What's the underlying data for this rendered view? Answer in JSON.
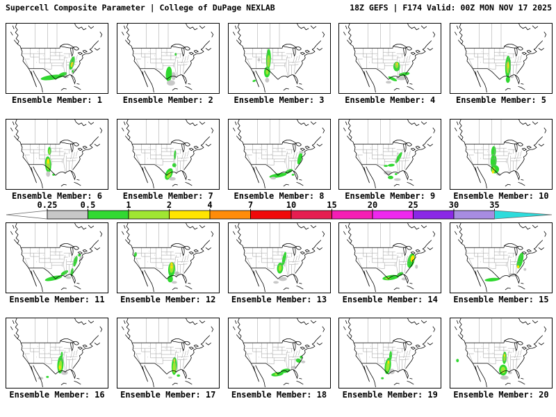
{
  "header": {
    "left": "Supercell Composite Parameter | College of DuPage NEXLAB",
    "right": "18Z GEFS | F174 Valid: 00Z MON NOV 17 2025"
  },
  "colorbar": {
    "ticks": [
      "0.25",
      "0.5",
      "1",
      "2",
      "4",
      "7",
      "10",
      "15",
      "20",
      "25",
      "30",
      "35"
    ],
    "segment_colors": [
      "#c8c8c8",
      "#32d932",
      "#a0e632",
      "#ffe400",
      "#ff8c0a",
      "#f00a0a",
      "#e61e50",
      "#f51eb4",
      "#ee28ee",
      "#8a28e6",
      "#a78ce1"
    ],
    "left_arrow_color": "#ffffff",
    "right_arrow_color": "#2edcdc"
  },
  "palette": {
    "G": "#2fd82f",
    "L": "#a0e632",
    "Y": "#ffe400",
    "GR": "#c8c8c8"
  },
  "chart_data": {
    "type": "map_contour_ensemble",
    "title": "Supercell Composite Parameter | College of DuPage NEXLAB",
    "model_run": "18Z GEFS",
    "forecast_hour": "F174",
    "valid": "00Z MON NOV 17 2025",
    "scale_values": [
      0.25,
      0.5,
      1,
      2,
      4,
      7,
      10,
      15,
      20,
      25,
      30,
      35
    ],
    "legend_position": "middle, between rows 2 and 3",
    "grid": "4 rows x 5 columns of CONUS maps",
    "members": [
      "Ensemble Member: 1",
      "Ensemble Member: 2",
      "Ensemble Member: 3",
      "Ensemble Member: 4",
      "Ensemble Member: 5",
      "Ensemble Member: 6",
      "Ensemble Member: 7",
      "Ensemble Member: 8",
      "Ensemble Member: 9",
      "Ensemble Member: 10",
      "Ensemble Member: 11",
      "Ensemble Member: 12",
      "Ensemble Member: 13",
      "Ensemble Member: 14",
      "Ensemble Member: 15",
      "Ensemble Member: 16",
      "Ensemble Member: 17",
      "Ensemble Member: 18",
      "Ensemble Member: 19",
      "Ensemble Member: 20"
    ]
  },
  "panels": [
    {
      "label": "Ensemble Member: 1",
      "blobs": [
        [
          66,
          79,
          16,
          3.5,
          -8,
          "G"
        ],
        [
          82,
          75,
          7,
          3,
          -22,
          "G"
        ],
        [
          96,
          58,
          3.5,
          10,
          15,
          "G"
        ],
        [
          96,
          60,
          1.7,
          4,
          15,
          "Y"
        ],
        [
          87,
          78,
          4,
          2,
          0,
          "GR"
        ],
        [
          100,
          68,
          3,
          2,
          0,
          "GR"
        ],
        [
          97,
          70,
          1.5,
          2,
          0,
          "G"
        ]
      ]
    },
    {
      "label": "Ensemble Member: 2",
      "blobs": [
        [
          75,
          74,
          4.5,
          11,
          3,
          "G"
        ],
        [
          78,
          87,
          6,
          4,
          0,
          "GR"
        ],
        [
          82,
          77,
          3,
          6,
          0,
          "GR"
        ],
        [
          85,
          45,
          1.5,
          2,
          0,
          "G"
        ]
      ]
    },
    {
      "label": "Ensemble Member: 3",
      "blobs": [
        [
          58,
          52,
          3.5,
          15,
          2,
          "G"
        ],
        [
          58,
          55,
          2,
          9,
          2,
          "L"
        ],
        [
          56,
          71,
          4.5,
          8,
          3,
          "G"
        ],
        [
          56,
          71,
          2,
          4,
          0,
          "L"
        ],
        [
          56,
          83,
          3,
          3.5,
          0,
          "GR"
        ],
        [
          37,
          84,
          2.5,
          1.5,
          -20,
          "G"
        ],
        [
          44,
          53,
          2,
          2.5,
          0,
          "GR"
        ]
      ]
    },
    {
      "label": "Ensemble Member: 4",
      "blobs": [
        [
          84,
          63,
          5,
          7,
          0,
          "G"
        ],
        [
          84,
          61,
          2.5,
          4.5,
          0,
          "L"
        ],
        [
          84,
          59,
          1.4,
          2.2,
          0,
          "Y"
        ],
        [
          95,
          74,
          8,
          2.5,
          -8,
          "G"
        ],
        [
          78,
          81,
          7,
          2.2,
          25,
          "G"
        ],
        [
          91,
          80,
          8,
          3,
          0,
          "GR"
        ],
        [
          72,
          86,
          4,
          2,
          0,
          "GR"
        ]
      ]
    },
    {
      "label": "Ensemble Member: 5",
      "blobs": [
        [
          84,
          63,
          4,
          16,
          2,
          "G"
        ],
        [
          84,
          64,
          2.2,
          9,
          2,
          "L"
        ],
        [
          84,
          61,
          1.4,
          5,
          0,
          "Y"
        ],
        [
          84,
          82,
          3,
          5,
          2,
          "G"
        ],
        [
          90,
          78,
          2.5,
          2,
          0,
          "GR"
        ]
      ]
    },
    {
      "label": "Ensemble Member: 6",
      "blobs": [
        [
          61,
          66,
          4.5,
          12,
          -3,
          "G"
        ],
        [
          61,
          66,
          2.8,
          8,
          -3,
          "L"
        ],
        [
          61,
          61,
          1.8,
          4,
          0,
          "Y"
        ],
        [
          63,
          46,
          2.5,
          6,
          0,
          "G"
        ],
        [
          63,
          47,
          1.3,
          3.5,
          0,
          "L"
        ],
        [
          61,
          80,
          3,
          4,
          0,
          "GR"
        ],
        [
          69,
          81,
          2,
          1.5,
          0,
          "G"
        ]
      ]
    },
    {
      "label": "Ensemble Member: 7",
      "blobs": [
        [
          84,
          52,
          1.6,
          7,
          3,
          "G"
        ],
        [
          83,
          67,
          3,
          3,
          0,
          "G"
        ],
        [
          75,
          80,
          5,
          9,
          25,
          "G"
        ],
        [
          75,
          81,
          2.5,
          5.5,
          25,
          "L"
        ],
        [
          80,
          87,
          5,
          2.5,
          0,
          "GR"
        ]
      ]
    },
    {
      "label": "Ensemble Member: 8",
      "blobs": [
        [
          72,
          82,
          13,
          3,
          -10,
          "G"
        ],
        [
          88,
          76,
          6,
          2.5,
          -25,
          "G"
        ],
        [
          104,
          57,
          3,
          9,
          15,
          "G"
        ],
        [
          94,
          81,
          2,
          1.5,
          0,
          "G"
        ],
        [
          107,
          48,
          3,
          2,
          0,
          "GR"
        ],
        [
          65,
          86,
          4,
          2,
          0,
          "GR"
        ]
      ]
    },
    {
      "label": "Ensemble Member: 9",
      "blobs": [
        [
          87,
          56,
          2.5,
          9,
          28,
          "G"
        ],
        [
          76,
          67,
          5,
          2,
          -5,
          "G"
        ],
        [
          68,
          68,
          3,
          1.5,
          0,
          "G"
        ],
        [
          75,
          85,
          4,
          2.5,
          0,
          "G"
        ],
        [
          83,
          80,
          2,
          1.5,
          0,
          "G"
        ],
        [
          71,
          78,
          6,
          3,
          0,
          "GR"
        ],
        [
          85,
          88,
          5,
          2,
          0,
          "GR"
        ]
      ]
    },
    {
      "label": "Ensemble Member: 10",
      "blobs": [
        [
          63,
          47,
          3.5,
          8,
          3,
          "G"
        ],
        [
          63,
          61,
          4.5,
          10,
          2,
          "G"
        ],
        [
          65,
          73,
          6,
          6,
          0,
          "G"
        ],
        [
          63,
          74,
          2.5,
          4,
          0,
          "L"
        ],
        [
          62,
          77,
          1.5,
          2.2,
          0,
          "Y"
        ],
        [
          70,
          80,
          3,
          2,
          0,
          "GR"
        ]
      ]
    },
    {
      "label": "Ensemble Member: 11",
      "blobs": [
        [
          69,
          81,
          13,
          3,
          -13,
          "G"
        ],
        [
          85,
          73,
          6,
          2.5,
          -30,
          "G"
        ],
        [
          96,
          72,
          2,
          6,
          8,
          "G"
        ],
        [
          101,
          56,
          2.5,
          8,
          15,
          "G"
        ],
        [
          107,
          47,
          2,
          2,
          0,
          "G"
        ],
        [
          91,
          80,
          4,
          2,
          0,
          "GR"
        ],
        [
          109,
          52,
          2,
          4,
          0,
          "GR"
        ]
      ]
    },
    {
      "label": "Ensemble Member: 12",
      "blobs": [
        [
          79,
          68,
          5,
          11,
          3,
          "G"
        ],
        [
          79,
          66,
          3,
          7,
          3,
          "L"
        ],
        [
          79,
          62,
          1.8,
          5,
          0,
          "Y"
        ],
        [
          77,
          82,
          4,
          5,
          0,
          "G"
        ],
        [
          87,
          74,
          4,
          3,
          0,
          "GR"
        ],
        [
          26,
          46,
          2,
          3.5,
          10,
          "G"
        ],
        [
          83,
          87,
          4,
          2,
          0,
          "GR"
        ]
      ]
    },
    {
      "label": "Ensemble Member: 13",
      "blobs": [
        [
          81,
          52,
          2.5,
          10,
          12,
          "G"
        ],
        [
          75,
          66,
          4.5,
          8,
          5,
          "G"
        ],
        [
          75,
          66,
          2.2,
          5,
          5,
          "L"
        ],
        [
          79,
          82,
          6,
          3,
          0,
          "GR"
        ],
        [
          69,
          87,
          4,
          2,
          0,
          "GR"
        ]
      ]
    },
    {
      "label": "Ensemble Member: 14",
      "blobs": [
        [
          75,
          80,
          12,
          3.5,
          -8,
          "G"
        ],
        [
          71,
          81,
          4,
          1.8,
          -8,
          "L"
        ],
        [
          89,
          75,
          5,
          2.5,
          -25,
          "G"
        ],
        [
          105,
          55,
          5,
          11,
          15,
          "G"
        ],
        [
          107,
          52,
          2.5,
          5,
          15,
          "Y"
        ],
        [
          95,
          82,
          4,
          2,
          0,
          "GR"
        ],
        [
          113,
          64,
          2,
          3,
          0,
          "GR"
        ]
      ]
    },
    {
      "label": "Ensemble Member: 15",
      "blobs": [
        [
          102,
          55,
          4,
          12,
          15,
          "G"
        ],
        [
          99,
          64,
          1.6,
          2.2,
          0,
          "Y"
        ],
        [
          61,
          83,
          11,
          2.5,
          -5,
          "G"
        ],
        [
          91,
          76,
          6,
          2.5,
          0,
          "GR"
        ],
        [
          109,
          68,
          2,
          2,
          0,
          "GR"
        ]
      ]
    },
    {
      "label": "Ensemble Member: 16",
      "blobs": [
        [
          79,
          68,
          4.5,
          13,
          3,
          "G"
        ],
        [
          79,
          70,
          2.5,
          8,
          3,
          "L"
        ],
        [
          78,
          72,
          1.5,
          3,
          0,
          "Y"
        ],
        [
          81,
          54,
          1.6,
          5,
          3,
          "G"
        ],
        [
          85,
          80,
          5,
          3,
          0,
          "GR"
        ],
        [
          50,
          88,
          4,
          2,
          0,
          "GR"
        ],
        [
          60,
          86,
          2,
          1.5,
          0,
          "G"
        ]
      ]
    },
    {
      "label": "Ensemble Member: 17",
      "blobs": [
        [
          83,
          70,
          4,
          13,
          2,
          "G"
        ],
        [
          83,
          72,
          2.5,
          8,
          2,
          "L"
        ],
        [
          83,
          62,
          1.4,
          2.2,
          0,
          "Y"
        ],
        [
          89,
          84,
          2.5,
          1.8,
          0,
          "G"
        ],
        [
          77,
          87,
          3,
          1.5,
          0,
          "GR"
        ]
      ]
    },
    {
      "label": "Ensemble Member: 18",
      "blobs": [
        [
          71,
          82,
          9,
          3,
          -8,
          "G"
        ],
        [
          83,
          77,
          7,
          3,
          -10,
          "G"
        ],
        [
          69,
          82,
          2,
          1.5,
          0,
          "L"
        ],
        [
          102,
          62,
          4,
          3,
          20,
          "G"
        ],
        [
          106,
          57,
          2,
          2,
          0,
          "G"
        ],
        [
          95,
          72,
          4,
          2,
          0,
          "GR"
        ],
        [
          109,
          64,
          3,
          2,
          0,
          "GR"
        ]
      ]
    },
    {
      "label": "Ensemble Member: 19",
      "blobs": [
        [
          75,
          55,
          2,
          7,
          3,
          "G"
        ],
        [
          71,
          70,
          4.5,
          12,
          8,
          "G"
        ],
        [
          71,
          70,
          2.5,
          8,
          8,
          "L"
        ],
        [
          72,
          64,
          1.4,
          2.5,
          0,
          "Y"
        ],
        [
          77,
          78,
          4,
          4,
          0,
          "GR"
        ],
        [
          63,
          88,
          2,
          1.5,
          0,
          "G"
        ]
      ]
    },
    {
      "label": "Ensemble Member: 20",
      "blobs": [
        [
          79,
          58,
          3,
          9,
          3,
          "G"
        ],
        [
          79,
          58,
          1.6,
          5,
          3,
          "L"
        ],
        [
          79,
          54,
          1.2,
          2,
          0,
          "Y"
        ],
        [
          77,
          76,
          6,
          8,
          0,
          "G"
        ],
        [
          77,
          76,
          3.5,
          5,
          0,
          "L"
        ],
        [
          79,
          87,
          6,
          3,
          0,
          "GR"
        ],
        [
          10,
          62,
          2,
          2.5,
          0,
          "G"
        ],
        [
          87,
          80,
          3,
          2,
          0,
          "GR"
        ]
      ]
    }
  ]
}
